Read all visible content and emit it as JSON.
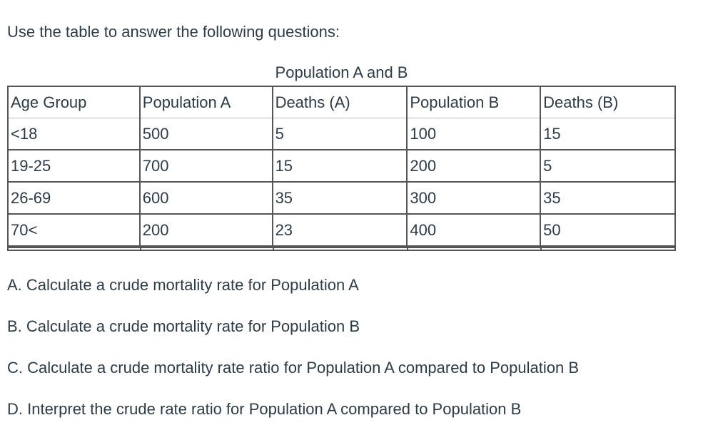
{
  "intro": "Use the table to answer the following questions:",
  "table": {
    "caption": "Population A and B",
    "headers": [
      "Age Group",
      "Population A",
      "Deaths (A)",
      "Population B",
      "Deaths (B)"
    ],
    "rows": [
      [
        "<18",
        "500",
        "5",
        "100",
        "15"
      ],
      [
        "19-25",
        "700",
        "15",
        "200",
        "5"
      ],
      [
        "26-69",
        "600",
        "35",
        "300",
        "35"
      ],
      [
        "70<",
        "200",
        "23",
        "400",
        "50"
      ]
    ]
  },
  "questions": [
    "A.  Calculate a crude mortality rate for Population A",
    "B.  Calculate a crude mortality rate for Population B",
    "C.  Calculate a crude mortality rate ratio for Population A compared to Population B",
    "D.  Interpret the crude rate ratio for Population A compared to Population B"
  ]
}
